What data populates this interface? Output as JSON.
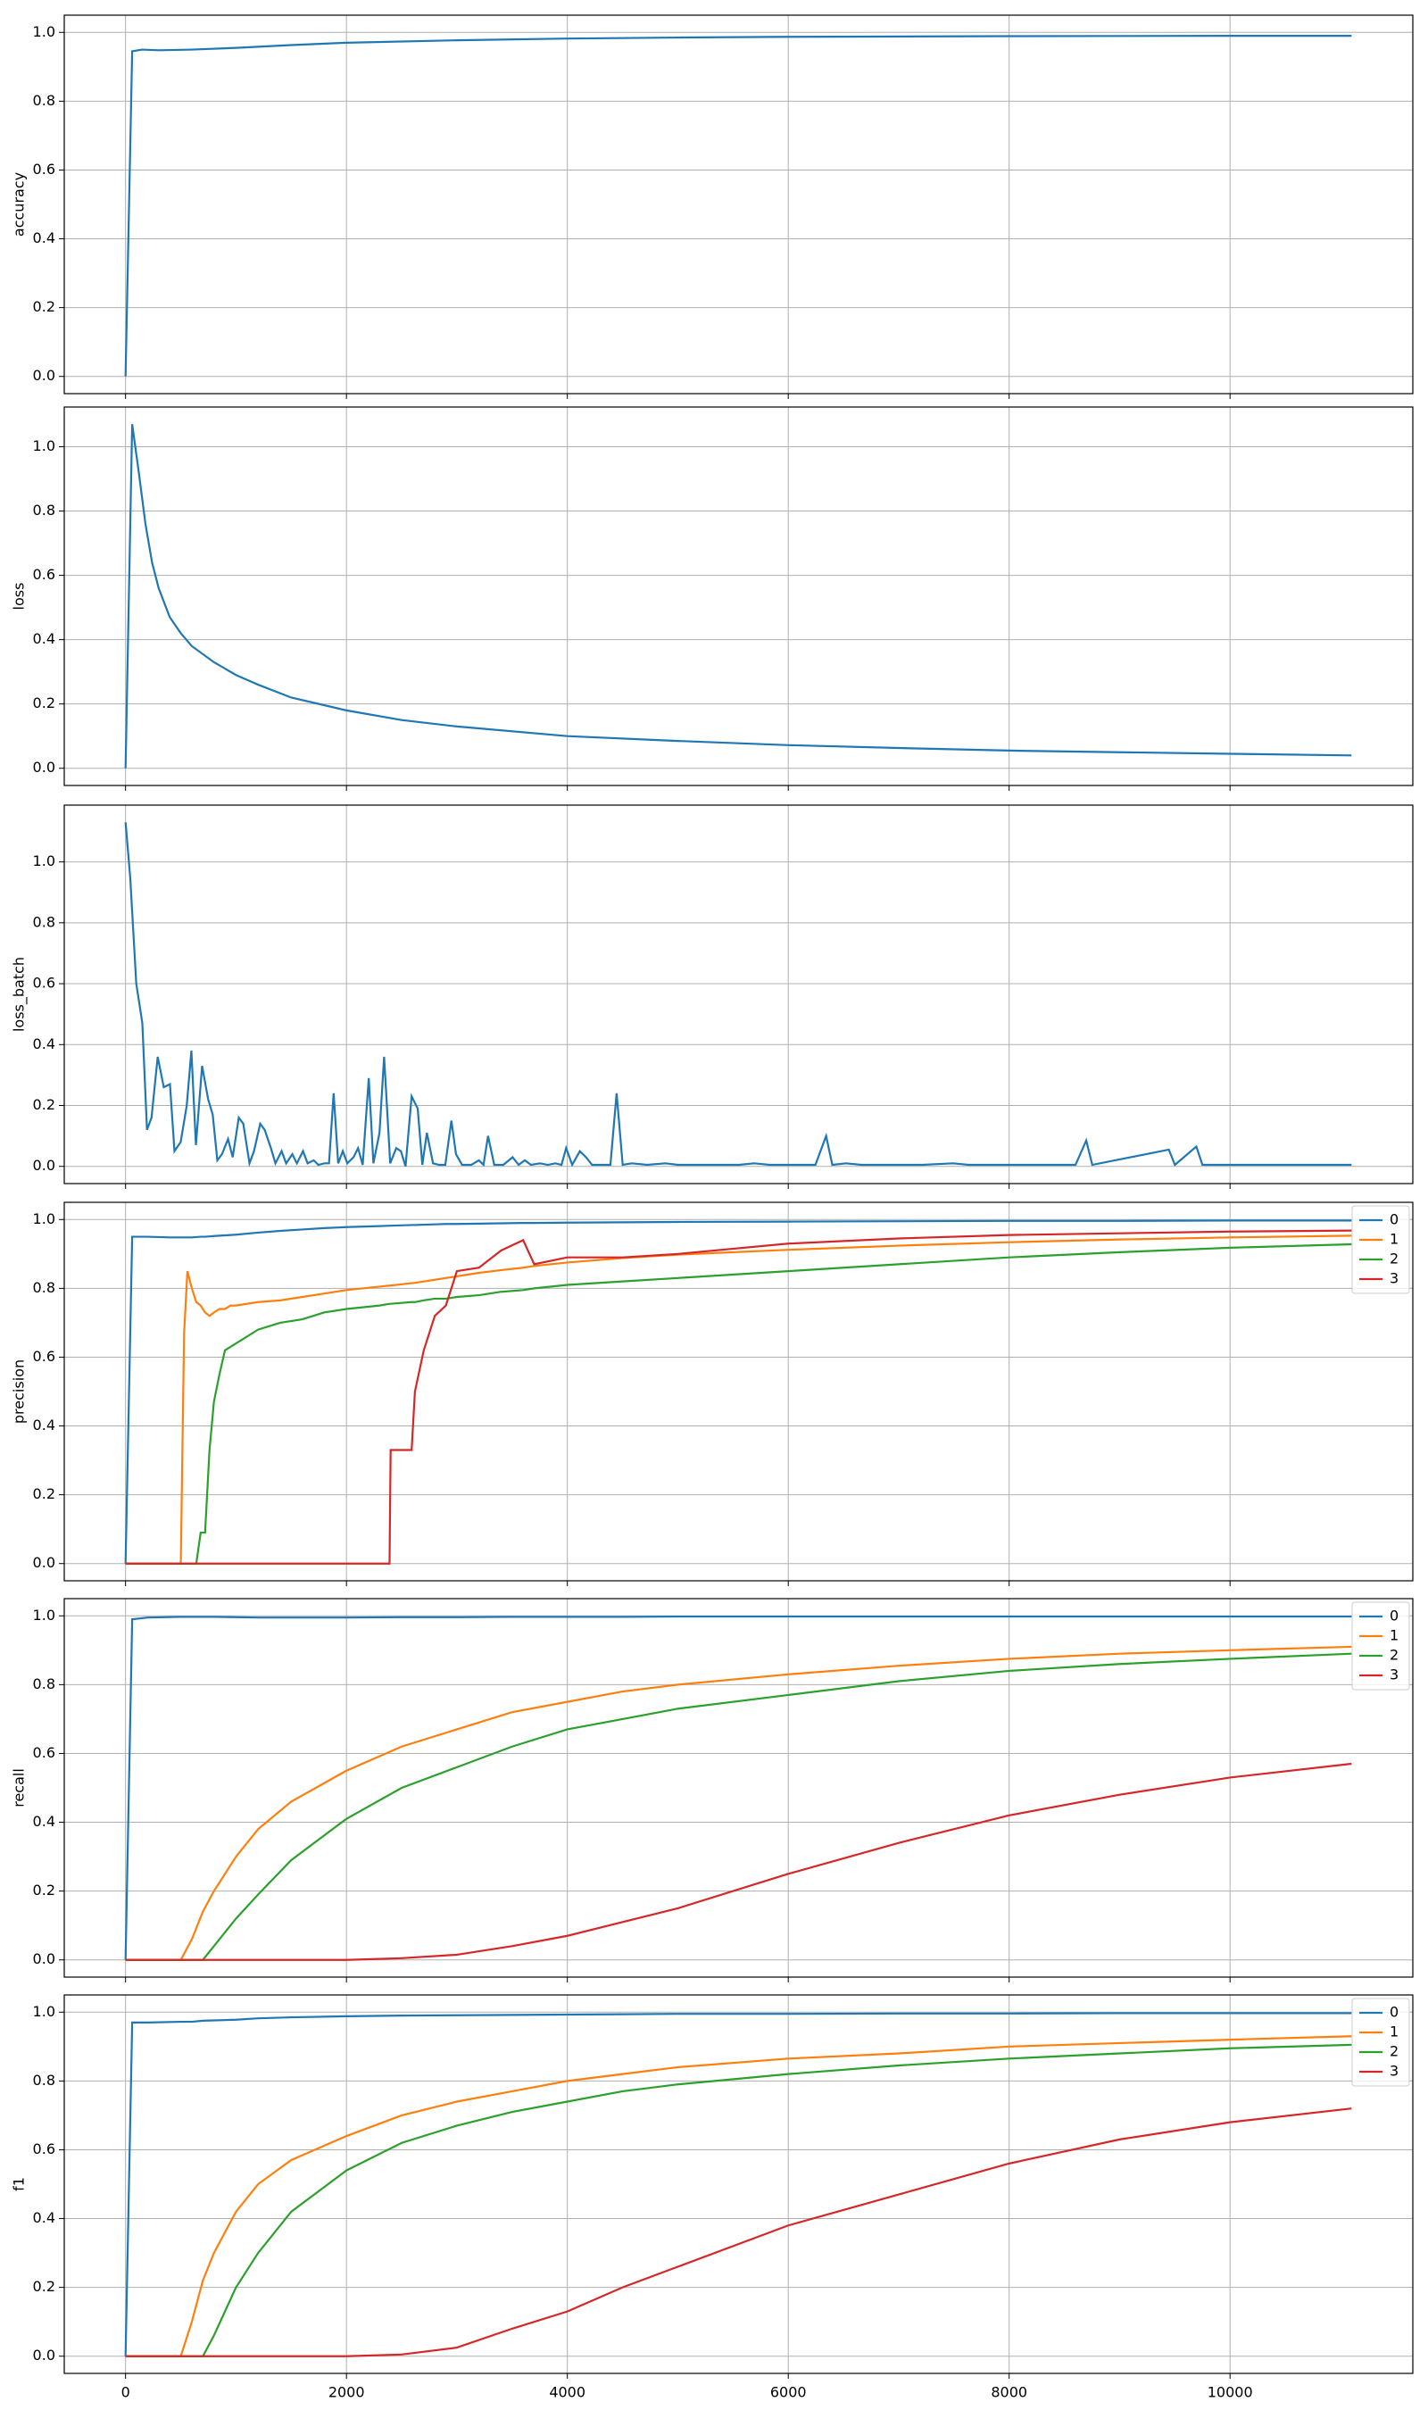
{
  "chart_data": [
    {
      "type": "line",
      "ylabel": "accuracy",
      "xlim": [
        -555,
        11655
      ],
      "ylim": [
        -0.05,
        1.05
      ],
      "grid": true,
      "xticks": [
        0,
        2000,
        4000,
        6000,
        8000,
        10000
      ],
      "yticks": [
        {
          "value": 0,
          "label": "0.0"
        },
        {
          "value": 0.2,
          "label": "0.2"
        },
        {
          "value": 0.4,
          "label": "0.4"
        },
        {
          "value": 0.6,
          "label": "0.6"
        },
        {
          "value": 0.8,
          "label": "0.8"
        },
        {
          "value": 1,
          "label": "1.0"
        }
      ],
      "x": [
        0,
        60,
        150,
        300,
        600,
        1000,
        1500,
        2000,
        3000,
        4000,
        5000,
        6000,
        8000,
        10000,
        11100
      ],
      "series": [
        {
          "color": "#1f77b4",
          "values": [
            0,
            0.945,
            0.95,
            0.948,
            0.95,
            0.955,
            0.963,
            0.97,
            0.977,
            0.982,
            0.985,
            0.987,
            0.989,
            0.99,
            0.99
          ]
        }
      ]
    },
    {
      "type": "line",
      "ylabel": "loss",
      "xlim": [
        -555,
        11655
      ],
      "ylim": [
        -0.0535,
        1.1235
      ],
      "grid": true,
      "xticks": [
        0,
        2000,
        4000,
        6000,
        8000,
        10000
      ],
      "yticks": [
        {
          "value": 0,
          "label": "0.0"
        },
        {
          "value": 0.2,
          "label": "0.2"
        },
        {
          "value": 0.4,
          "label": "0.4"
        },
        {
          "value": 0.6,
          "label": "0.6"
        },
        {
          "value": 0.8,
          "label": "0.8"
        },
        {
          "value": 1,
          "label": "1.0"
        }
      ],
      "x": [
        0,
        60,
        120,
        180,
        240,
        300,
        400,
        500,
        600,
        800,
        1000,
        1200,
        1500,
        2000,
        2500,
        3000,
        4000,
        5000,
        6000,
        7000,
        8000,
        9000,
        10000,
        11100
      ],
      "series": [
        {
          "color": "#1f77b4",
          "values": [
            0,
            1.07,
            0.92,
            0.76,
            0.64,
            0.56,
            0.47,
            0.42,
            0.38,
            0.33,
            0.29,
            0.26,
            0.22,
            0.18,
            0.15,
            0.13,
            0.1,
            0.085,
            0.072,
            0.063,
            0.055,
            0.05,
            0.045,
            0.04
          ]
        }
      ]
    },
    {
      "type": "line",
      "ylabel": "loss_batch",
      "xlim": [
        -555,
        11655
      ],
      "ylim": [
        -0.0565,
        1.1865
      ],
      "grid": true,
      "xticks": [
        0,
        2000,
        4000,
        6000,
        8000,
        10000
      ],
      "yticks": [
        {
          "value": 0,
          "label": "0.0"
        },
        {
          "value": 0.2,
          "label": "0.2"
        },
        {
          "value": 0.4,
          "label": "0.4"
        },
        {
          "value": 0.6,
          "label": "0.6"
        },
        {
          "value": 0.8,
          "label": "0.8"
        },
        {
          "value": 1,
          "label": "1.0"
        }
      ],
      "x": [
        0,
        42,
        97,
        152,
        194,
        235,
        291,
        346,
        402,
        443,
        499,
        554,
        596,
        637,
        693,
        748,
        789,
        831,
        873,
        928,
        970,
        1025,
        1066,
        1122,
        1163,
        1219,
        1260,
        1316,
        1357,
        1413,
        1454,
        1510,
        1551,
        1607,
        1648,
        1704,
        1745,
        1801,
        1842,
        1884,
        1925,
        1967,
        2008,
        2064,
        2105,
        2147,
        2202,
        2244,
        2299,
        2341,
        2396,
        2451,
        2493,
        2535,
        2590,
        2645,
        2687,
        2728,
        2784,
        2839,
        2895,
        2950,
        2992,
        3047,
        3130,
        3199,
        3241,
        3282,
        3338,
        3421,
        3504,
        3559,
        3615,
        3670,
        3753,
        3823,
        3892,
        3947,
        3989,
        4044,
        4113,
        4169,
        4224,
        4307,
        4390,
        4446,
        4501,
        4584,
        4723,
        4889,
        5000,
        5069,
        5554,
        5692,
        5831,
        6246,
        6343,
        6399,
        6523,
        6662,
        7216,
        7493,
        7631,
        8601,
        8698,
        8753,
        9446,
        9501,
        9695,
        9750,
        11100
      ],
      "series": [
        {
          "color": "#1f77b4",
          "values": [
            1.13,
            0.95,
            0.6,
            0.47,
            0.12,
            0.16,
            0.36,
            0.26,
            0.27,
            0.05,
            0.08,
            0.2,
            0.38,
            0.07,
            0.33,
            0.22,
            0.17,
            0.02,
            0.04,
            0.09,
            0.03,
            0.16,
            0.14,
            0.01,
            0.05,
            0.14,
            0.12,
            0.06,
            0.01,
            0.05,
            0.01,
            0.04,
            0.01,
            0.05,
            0.01,
            0.02,
            0.005,
            0.01,
            0.01,
            0.24,
            0.01,
            0.05,
            0.01,
            0.03,
            0.06,
            0.005,
            0.29,
            0.01,
            0.11,
            0.36,
            0.01,
            0.06,
            0.05,
            0,
            0.23,
            0.19,
            0.005,
            0.11,
            0.01,
            0.005,
            0.005,
            0.15,
            0.04,
            0.005,
            0.005,
            0.02,
            0.005,
            0.1,
            0.005,
            0.005,
            0.03,
            0.005,
            0.02,
            0.005,
            0.01,
            0.005,
            0.01,
            0.005,
            0.06,
            0.005,
            0.05,
            0.03,
            0.005,
            0.005,
            0.005,
            0.24,
            0.005,
            0.01,
            0.005,
            0.01,
            0.005,
            0.005,
            0.005,
            0.01,
            0.005,
            0.005,
            0.1,
            0.005,
            0.01,
            0.005,
            0.005,
            0.01,
            0.005,
            0.005,
            0.085,
            0.005,
            0.055,
            0.005,
            0.065,
            0.005,
            0.005
          ]
        }
      ]
    },
    {
      "type": "line",
      "ylabel": "precision",
      "xlim": [
        -555,
        11655
      ],
      "ylim": [
        -0.05,
        1.05
      ],
      "grid": true,
      "legend": "upper right",
      "xticks": [
        0,
        2000,
        4000,
        6000,
        8000,
        10000
      ],
      "yticks": [
        {
          "value": 0,
          "label": "0.0"
        },
        {
          "value": 0.2,
          "label": "0.2"
        },
        {
          "value": 0.4,
          "label": "0.4"
        },
        {
          "value": 0.6,
          "label": "0.6"
        },
        {
          "value": 0.8,
          "label": "0.8"
        },
        {
          "value": 1,
          "label": "1.0"
        }
      ],
      "x": [
        0,
        60,
        200,
        400,
        500,
        530,
        560,
        600,
        640,
        680,
        720,
        760,
        800,
        850,
        900,
        950,
        1000,
        1200,
        1400,
        1600,
        1800,
        2000,
        2300,
        2390,
        2400,
        2590,
        2620,
        2700,
        2800,
        2900,
        3000,
        3200,
        3400,
        3600,
        3700,
        4000,
        4500,
        5000,
        6000,
        7000,
        8000,
        9000,
        10000,
        11100
      ],
      "series": [
        {
          "name": "0",
          "color": "#1f77b4",
          "values": [
            0,
            0.95,
            0.95,
            0.948,
            0.948,
            0.948,
            0.948,
            0.948,
            0.949,
            0.95,
            0.95,
            0.951,
            0.952,
            0.953,
            0.954,
            0.955,
            0.956,
            0.962,
            0.967,
            0.971,
            0.975,
            0.978,
            0.981,
            0.982,
            0.982,
            0.984,
            0.984,
            0.985,
            0.986,
            0.987,
            0.987,
            0.988,
            0.989,
            0.99,
            0.99,
            0.991,
            0.992,
            0.993,
            0.994,
            0.995,
            0.996,
            0.996,
            0.997,
            0.997
          ]
        },
        {
          "name": "1",
          "color": "#ff7f0e",
          "values": [
            0,
            0,
            0,
            0,
            0,
            0.67,
            0.85,
            0.8,
            0.76,
            0.75,
            0.73,
            0.72,
            0.73,
            0.74,
            0.74,
            0.75,
            0.75,
            0.76,
            0.765,
            0.775,
            0.785,
            0.795,
            0.805,
            0.808,
            0.808,
            0.815,
            0.816,
            0.82,
            0.825,
            0.83,
            0.835,
            0.845,
            0.853,
            0.86,
            0.865,
            0.875,
            0.888,
            0.898,
            0.912,
            0.924,
            0.934,
            0.942,
            0.948,
            0.953
          ]
        },
        {
          "name": "2",
          "color": "#2ca02c",
          "values": [
            0,
            0,
            0,
            0,
            0,
            0,
            0,
            0,
            0,
            0.09,
            0.09,
            0.33,
            0.47,
            0.55,
            0.62,
            0.63,
            0.64,
            0.68,
            0.7,
            0.71,
            0.73,
            0.74,
            0.75,
            0.755,
            0.755,
            0.76,
            0.76,
            0.765,
            0.77,
            0.77,
            0.775,
            0.78,
            0.79,
            0.795,
            0.8,
            0.81,
            0.82,
            0.83,
            0.85,
            0.87,
            0.89,
            0.905,
            0.918,
            0.928
          ]
        },
        {
          "name": "3",
          "color": "#d62728",
          "values": [
            0,
            0,
            0,
            0,
            0,
            0,
            0,
            0,
            0,
            0,
            0,
            0,
            0,
            0,
            0,
            0,
            0,
            0,
            0,
            0,
            0,
            0,
            0,
            0,
            0.33,
            0.33,
            0.5,
            0.62,
            0.72,
            0.75,
            0.85,
            0.86,
            0.91,
            0.94,
            0.87,
            0.89,
            0.89,
            0.9,
            0.93,
            0.945,
            0.955,
            0.96,
            0.965,
            0.968
          ]
        }
      ]
    },
    {
      "type": "line",
      "ylabel": "recall",
      "xlim": [
        -555,
        11655
      ],
      "ylim": [
        -0.05,
        1.05
      ],
      "grid": true,
      "legend": "upper right",
      "xticks": [
        0,
        2000,
        4000,
        6000,
        8000,
        10000
      ],
      "yticks": [
        {
          "value": 0,
          "label": "0.0"
        },
        {
          "value": 0.2,
          "label": "0.2"
        },
        {
          "value": 0.4,
          "label": "0.4"
        },
        {
          "value": 0.6,
          "label": "0.6"
        },
        {
          "value": 0.8,
          "label": "0.8"
        },
        {
          "value": 1,
          "label": "1.0"
        }
      ],
      "x": [
        0,
        60,
        200,
        500,
        600,
        700,
        800,
        1000,
        1200,
        1500,
        2000,
        2500,
        3000,
        3500,
        4000,
        4500,
        5000,
        6000,
        7000,
        8000,
        9000,
        10000,
        11100
      ],
      "series": [
        {
          "name": "0",
          "color": "#1f77b4",
          "values": [
            0,
            0.99,
            0.995,
            0.997,
            0.997,
            0.997,
            0.997,
            0.996,
            0.995,
            0.995,
            0.995,
            0.996,
            0.996,
            0.997,
            0.997,
            0.997,
            0.998,
            0.998,
            0.998,
            0.998,
            0.998,
            0.998,
            0.998
          ]
        },
        {
          "name": "1",
          "color": "#ff7f0e",
          "values": [
            0,
            0,
            0,
            0,
            0.06,
            0.14,
            0.2,
            0.3,
            0.38,
            0.46,
            0.55,
            0.62,
            0.67,
            0.72,
            0.75,
            0.78,
            0.8,
            0.83,
            0.855,
            0.875,
            0.89,
            0.9,
            0.91
          ]
        },
        {
          "name": "2",
          "color": "#2ca02c",
          "values": [
            0,
            0,
            0,
            0,
            0,
            0,
            0.04,
            0.12,
            0.19,
            0.29,
            0.41,
            0.5,
            0.56,
            0.62,
            0.67,
            0.7,
            0.73,
            0.77,
            0.81,
            0.84,
            0.86,
            0.875,
            0.89
          ]
        },
        {
          "name": "3",
          "color": "#d62728",
          "values": [
            0,
            0,
            0,
            0,
            0,
            0,
            0,
            0,
            0,
            0,
            0,
            0.005,
            0.015,
            0.04,
            0.07,
            0.11,
            0.15,
            0.25,
            0.34,
            0.42,
            0.48,
            0.53,
            0.57
          ]
        }
      ]
    },
    {
      "type": "line",
      "ylabel": "f1",
      "xlim": [
        -555,
        11655
      ],
      "ylim": [
        -0.05,
        1.05
      ],
      "grid": true,
      "legend": "upper right",
      "xticks": [
        0,
        2000,
        4000,
        6000,
        8000,
        10000
      ],
      "yticks": [
        {
          "value": 0,
          "label": "0.0"
        },
        {
          "value": 0.2,
          "label": "0.2"
        },
        {
          "value": 0.4,
          "label": "0.4"
        },
        {
          "value": 0.6,
          "label": "0.6"
        },
        {
          "value": 0.8,
          "label": "0.8"
        },
        {
          "value": 1,
          "label": "1.0"
        }
      ],
      "x": [
        0,
        60,
        200,
        500,
        600,
        700,
        800,
        1000,
        1200,
        1500,
        2000,
        2500,
        3000,
        3500,
        4000,
        4500,
        5000,
        6000,
        7000,
        8000,
        9000,
        10000,
        11100
      ],
      "series": [
        {
          "name": "0",
          "color": "#1f77b4",
          "values": [
            0,
            0.97,
            0.97,
            0.972,
            0.972,
            0.975,
            0.976,
            0.978,
            0.982,
            0.985,
            0.988,
            0.99,
            0.991,
            0.992,
            0.993,
            0.994,
            0.995,
            0.995,
            0.996,
            0.996,
            0.997,
            0.997,
            0.997
          ]
        },
        {
          "name": "1",
          "color": "#ff7f0e",
          "values": [
            0,
            0,
            0,
            0,
            0.1,
            0.22,
            0.3,
            0.42,
            0.5,
            0.57,
            0.64,
            0.7,
            0.74,
            0.77,
            0.8,
            0.82,
            0.84,
            0.865,
            0.88,
            0.9,
            0.91,
            0.92,
            0.93
          ]
        },
        {
          "name": "2",
          "color": "#2ca02c",
          "values": [
            0,
            0,
            0,
            0,
            0,
            0,
            0.06,
            0.2,
            0.3,
            0.42,
            0.54,
            0.62,
            0.67,
            0.71,
            0.74,
            0.77,
            0.79,
            0.82,
            0.845,
            0.865,
            0.88,
            0.895,
            0.905
          ]
        },
        {
          "name": "3",
          "color": "#d62728",
          "values": [
            0,
            0,
            0,
            0,
            0,
            0,
            0,
            0,
            0,
            0,
            0,
            0.005,
            0.025,
            0.08,
            0.13,
            0.2,
            0.26,
            0.38,
            0.47,
            0.56,
            0.63,
            0.68,
            0.72
          ]
        }
      ]
    }
  ]
}
